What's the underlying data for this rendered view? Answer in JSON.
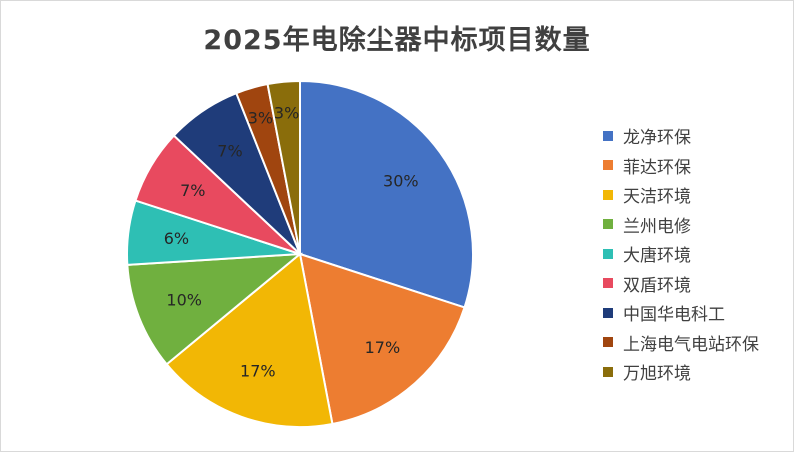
{
  "chart_data": {
    "type": "pie",
    "title": "2025年电除尘器中标项目数量",
    "slices": [
      {
        "name": "龙净环保",
        "percent": 30,
        "label": "30%",
        "color": "#4472C4"
      },
      {
        "name": "菲达环保",
        "percent": 17,
        "label": "17%",
        "color": "#ED7D31"
      },
      {
        "name": "天洁环境",
        "percent": 17,
        "label": "17%",
        "color": "#F2B705"
      },
      {
        "name": "兰州电修",
        "percent": 10,
        "label": "10%",
        "color": "#70B03F"
      },
      {
        "name": "大唐环境",
        "percent": 6,
        "label": "6%",
        "color": "#2EBFB4"
      },
      {
        "name": "双盾环境",
        "percent": 7,
        "label": "7%",
        "color": "#E84A5F"
      },
      {
        "name": "中国华电科工",
        "percent": 7,
        "label": "7%",
        "color": "#1F3C7A"
      },
      {
        "name": "上海电气电站环保",
        "percent": 3,
        "label": "3%",
        "color": "#A0450F"
      },
      {
        "name": "万旭环境",
        "percent": 3,
        "label": "3%",
        "color": "#8A6D0B"
      }
    ],
    "legend_position": "right"
  }
}
